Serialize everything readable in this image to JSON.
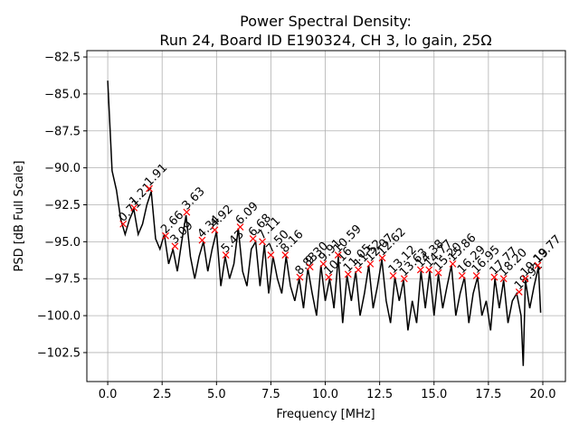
{
  "chart_data": {
    "type": "line",
    "title": "Power Spectral Density:",
    "subtitle": "Run 24, Board ID E190324, CH 3, lo gain, 25Ω",
    "x_label": "Frequency [MHz]",
    "y_label": "PSD [dB Full Scale]",
    "color": "#000000",
    "grid": true,
    "x": [
      0,
      0.2,
      0.4,
      0.6,
      0.8,
      1.0,
      1.2,
      1.4,
      1.6,
      1.8,
      2.0,
      2.2,
      2.4,
      2.6,
      2.8,
      3.0,
      3.2,
      3.4,
      3.6,
      3.8,
      4.0,
      4.2,
      4.4,
      4.6,
      4.8,
      5.0,
      5.2,
      5.4,
      5.6,
      5.8,
      6.0,
      6.2,
      6.4,
      6.6,
      6.8,
      7.0,
      7.2,
      7.4,
      7.6,
      7.8,
      8.0,
      8.2,
      8.4,
      8.6,
      8.8,
      9.0,
      9.2,
      9.4,
      9.6,
      9.8,
      10.0,
      10.2,
      10.4,
      10.6,
      10.8,
      11.0,
      11.2,
      11.4,
      11.6,
      11.8,
      12.0,
      12.2,
      12.4,
      12.6,
      12.8,
      13.0,
      13.2,
      13.4,
      13.6,
      13.8,
      14.0,
      14.2,
      14.4,
      14.6,
      14.8,
      15.0,
      15.2,
      15.4,
      15.6,
      15.8,
      16.0,
      16.2,
      16.4,
      16.6,
      16.8,
      17.0,
      17.2,
      17.4,
      17.6,
      17.8,
      18.0,
      18.2,
      18.4,
      18.6,
      18.8,
      19.0,
      19.1,
      19.2,
      19.4,
      19.6,
      19.8,
      19.9
    ],
    "values": [
      -84.1,
      -90.2,
      -91.5,
      -93.5,
      -94.5,
      -93.5,
      -92.8,
      -94.5,
      -93.8,
      -92.5,
      -91.6,
      -94.8,
      -95.5,
      -94.5,
      -96.5,
      -95.5,
      -97.0,
      -95.0,
      -93.2,
      -96.0,
      -97.5,
      -96.0,
      -95.0,
      -97.0,
      -95.5,
      -94.3,
      -98.0,
      -96.0,
      -97.5,
      -96.5,
      -94.1,
      -97.0,
      -98.0,
      -95.5,
      -95.0,
      -98.0,
      -95.2,
      -98.5,
      -96.0,
      -97.5,
      -98.5,
      -96.0,
      -98.0,
      -99.0,
      -97.5,
      -99.5,
      -96.8,
      -98.5,
      -100.0,
      -96.6,
      -99.0,
      -97.5,
      -99.5,
      -96.0,
      -100.5,
      -97.3,
      -99.0,
      -97.0,
      -100.0,
      -98.5,
      -96.6,
      -99.5,
      -98.0,
      -96.2,
      -99.0,
      -100.5,
      -97.4,
      -99.0,
      -97.6,
      -101.0,
      -99.0,
      -100.5,
      -97.0,
      -99.5,
      -97.0,
      -100.0,
      -97.2,
      -99.5,
      -98.0,
      -96.6,
      -100.0,
      -98.5,
      -97.4,
      -100.5,
      -98.5,
      -97.4,
      -100.0,
      -99.0,
      -101.0,
      -97.5,
      -99.5,
      -97.6,
      -100.5,
      -99.0,
      -98.5,
      -100.0,
      -103.4,
      -97.6,
      -99.5,
      -98.0,
      -96.7,
      -99.8
    ],
    "peaks": {
      "color": "#ff0000",
      "x": [
        0.71,
        1.21,
        1.91,
        2.66,
        3.09,
        3.63,
        4.34,
        4.92,
        5.43,
        6.09,
        6.68,
        7.11,
        7.5,
        8.16,
        8.83,
        9.3,
        9.91,
        10.16,
        10.59,
        11.05,
        11.52,
        12.07,
        12.62,
        13.12,
        13.63,
        14.38,
        14.77,
        15.2,
        15.86,
        16.29,
        16.95,
        17.77,
        18.2,
        18.91,
        19.19,
        19.77
      ],
      "values": [
        -93.8,
        -92.7,
        -91.4,
        -94.6,
        -95.3,
        -93.0,
        -94.9,
        -94.2,
        -95.9,
        -94.0,
        -94.8,
        -95.0,
        -95.9,
        -95.9,
        -97.4,
        -96.7,
        -96.5,
        -97.4,
        -95.9,
        -97.2,
        -96.9,
        -96.5,
        -96.1,
        -97.3,
        -97.5,
        -96.9,
        -96.9,
        -97.1,
        -96.5,
        -97.3,
        -97.3,
        -97.4,
        -97.5,
        -98.4,
        -97.5,
        -96.6
      ],
      "x_labels": [
        "0.71",
        "1.21",
        "1.91",
        "2.66",
        "3.09",
        "3.63",
        "4.34",
        "4.92",
        "5.43",
        "6.09",
        "6.68",
        "7.11",
        "7.50",
        "8.16",
        "8.83",
        "9.30",
        "9.91",
        "10.16",
        "10.59",
        "11.05",
        "11.52",
        "12.07",
        "12.62",
        "13.12",
        "13.63",
        "14.38",
        "14.77",
        "15.20",
        "15.86",
        "16.29",
        "16.95",
        "17.77",
        "18.20",
        "18.91",
        "19.19",
        "19.77"
      ]
    },
    "xlim": [
      -0.96,
      21.04
    ],
    "ylim": [
      -104.46,
      -82.07
    ],
    "xticks": [
      {
        "value": 0,
        "label": "0.0"
      },
      2.5,
      {
        "value": 5,
        "label": "5.0"
      },
      7.5,
      {
        "value": 10,
        "label": "10.0"
      },
      12.5,
      {
        "value": 15,
        "label": "15.0"
      },
      17.5,
      {
        "value": 20,
        "label": "20.0"
      }
    ],
    "yticks": [
      {
        "value": -82.5,
        "label": "−82.5"
      },
      {
        "value": -85,
        "label": "−85.0"
      },
      {
        "value": -87.5,
        "label": "−87.5"
      },
      {
        "value": -90,
        "label": "−90.0"
      },
      {
        "value": -92.5,
        "label": "−92.5"
      },
      {
        "value": -95,
        "label": "−95.0"
      },
      {
        "value": -97.5,
        "label": "−97.5"
      },
      {
        "value": -100,
        "label": "−100.0"
      },
      {
        "value": -102.5,
        "label": "−102.5"
      }
    ]
  }
}
